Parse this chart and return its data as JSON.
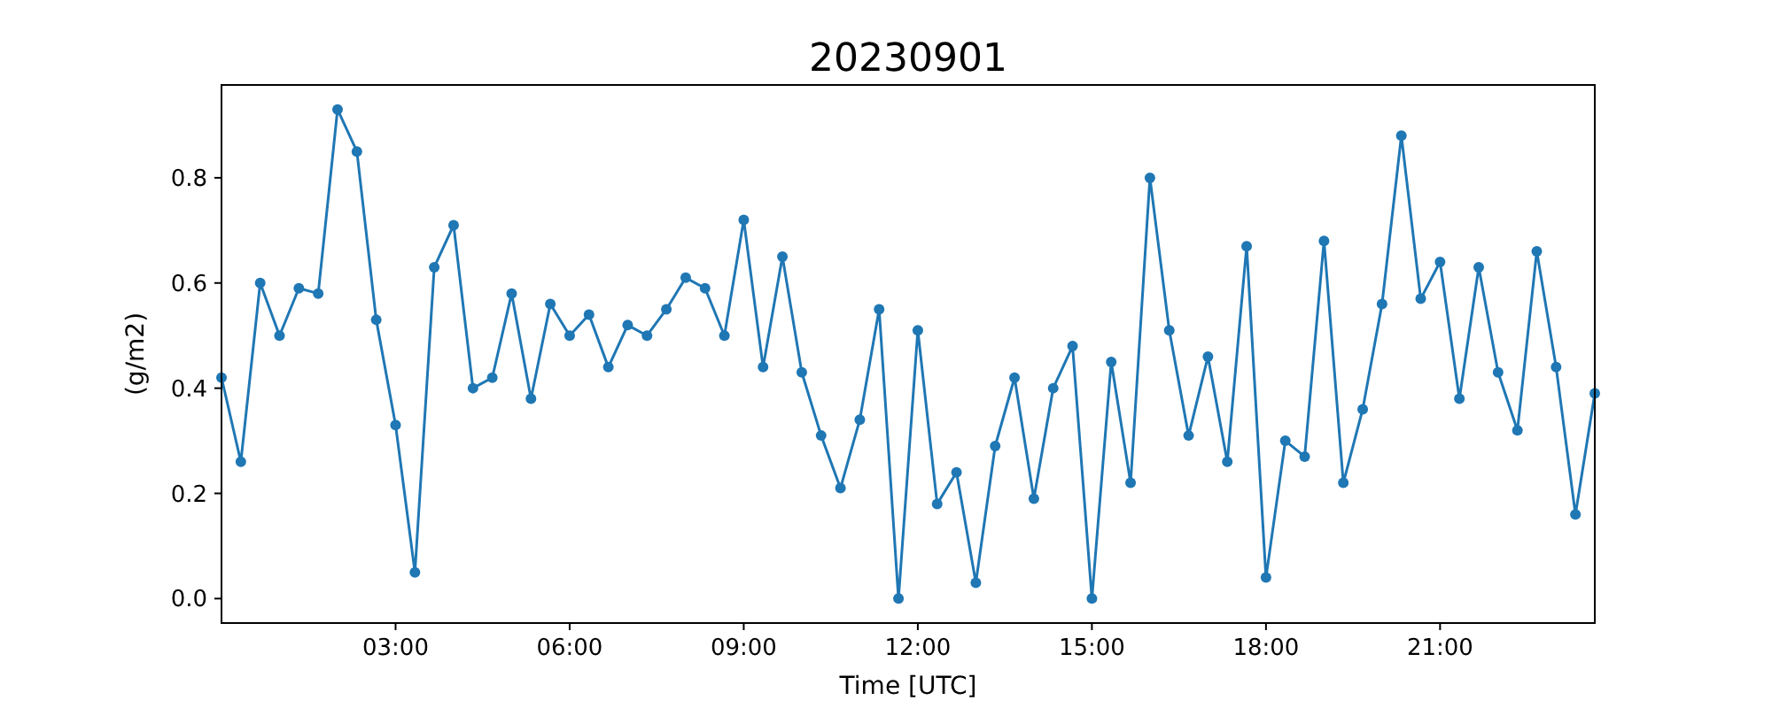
{
  "chart_data": {
    "type": "line",
    "title": "20230901",
    "xlabel": "Time [UTC]",
    "ylabel": "(g/m2)",
    "x": [
      0,
      0.3333,
      0.6667,
      1,
      1.3333,
      1.6667,
      2,
      2.3333,
      2.6667,
      3,
      3.3333,
      3.6667,
      4,
      4.3333,
      4.6667,
      5,
      5.3333,
      5.6667,
      6,
      6.3333,
      6.6667,
      7,
      7.3333,
      7.6667,
      8,
      8.3333,
      8.6667,
      9,
      9.3333,
      9.6667,
      10,
      10.3333,
      10.6667,
      11,
      11.3333,
      11.6667,
      12,
      12.3333,
      12.6667,
      13,
      13.3333,
      13.6667,
      14,
      14.3333,
      14.6667,
      15,
      15.3333,
      15.6667,
      16,
      16.3333,
      16.6667,
      17,
      17.3333,
      17.6667,
      18,
      18.3333,
      18.6667,
      19,
      19.3333,
      19.6667,
      20,
      20.3333,
      20.6667,
      21,
      21.3333,
      21.6667,
      22,
      22.3333,
      22.6667,
      23,
      23.3333,
      23.6667
    ],
    "series": [
      {
        "color": "#1f77b4",
        "values": [
          0.42,
          0.26,
          0.6,
          0.5,
          0.59,
          0.58,
          0.93,
          0.85,
          0.53,
          0.33,
          0.05,
          0.63,
          0.71,
          0.4,
          0.42,
          0.58,
          0.38,
          0.56,
          0.5,
          0.54,
          0.44,
          0.52,
          0.5,
          0.55,
          0.61,
          0.59,
          0.5,
          0.72,
          0.44,
          0.65,
          0.43,
          0.31,
          0.21,
          0.34,
          0.55,
          0.0,
          0.51,
          0.18,
          0.24,
          0.03,
          0.29,
          0.42,
          0.19,
          0.4,
          0.48,
          0.0,
          0.45,
          0.22,
          0.8,
          0.51,
          0.31,
          0.46,
          0.26,
          0.67,
          0.04,
          0.3,
          0.27,
          0.68,
          0.22,
          0.36,
          0.56,
          0.88,
          0.57,
          0.64,
          0.38,
          0.63,
          0.43,
          0.32,
          0.66,
          0.44,
          0.16,
          0.39
        ]
      }
    ],
    "xlim": [
      0,
      23.6667
    ],
    "xticks": [
      {
        "value": 3,
        "label": "03:00"
      },
      {
        "value": 6,
        "label": "06:00"
      },
      {
        "value": 9,
        "label": "09:00"
      },
      {
        "value": 12,
        "label": "12:00"
      },
      {
        "value": 15,
        "label": "15:00"
      },
      {
        "value": 18,
        "label": "18:00"
      },
      {
        "value": 21,
        "label": "21:00"
      }
    ],
    "ylim": [
      -0.0465,
      0.9765
    ],
    "yticks": [
      {
        "value": 0,
        "label": "0.0"
      },
      {
        "value": 0.2,
        "label": "0.2"
      },
      {
        "value": 0.4,
        "label": "0.4"
      },
      {
        "value": 0.6,
        "label": "0.6"
      },
      {
        "value": 0.8,
        "label": "0.8"
      }
    ],
    "grid": false,
    "marker": "circle",
    "line_style": "solid"
  }
}
